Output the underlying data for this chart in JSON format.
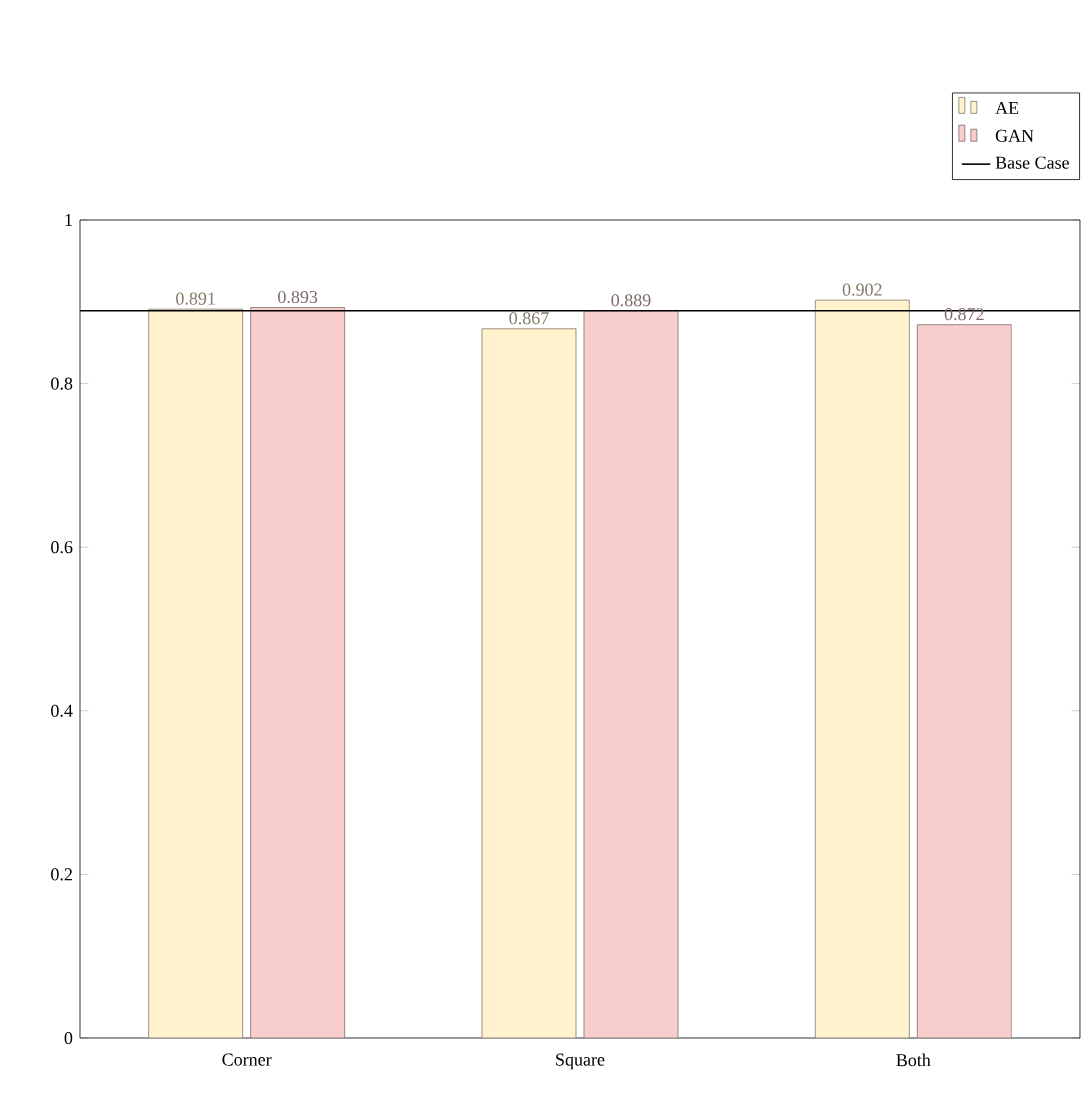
{
  "chart_data": {
    "type": "bar",
    "categories": [
      "Corner",
      "Square",
      "Both"
    ],
    "series": [
      {
        "name": "AE",
        "color": "#fff2cc",
        "values": [
          0.891,
          0.867,
          0.902
        ]
      },
      {
        "name": "GAN",
        "color": "#f8cecc",
        "values": [
          0.893,
          0.889,
          0.872
        ]
      }
    ],
    "ylim": [
      0,
      1
    ],
    "yticks": [
      0,
      0.2,
      0.4,
      0.6,
      0.8,
      1
    ],
    "ref_lines": [
      {
        "axis": "y",
        "value": 0.889,
        "label": "Base Case",
        "color": "#000000",
        "line_style": "solid"
      }
    ],
    "data_labels": true,
    "legend": "top right",
    "grid": false
  }
}
